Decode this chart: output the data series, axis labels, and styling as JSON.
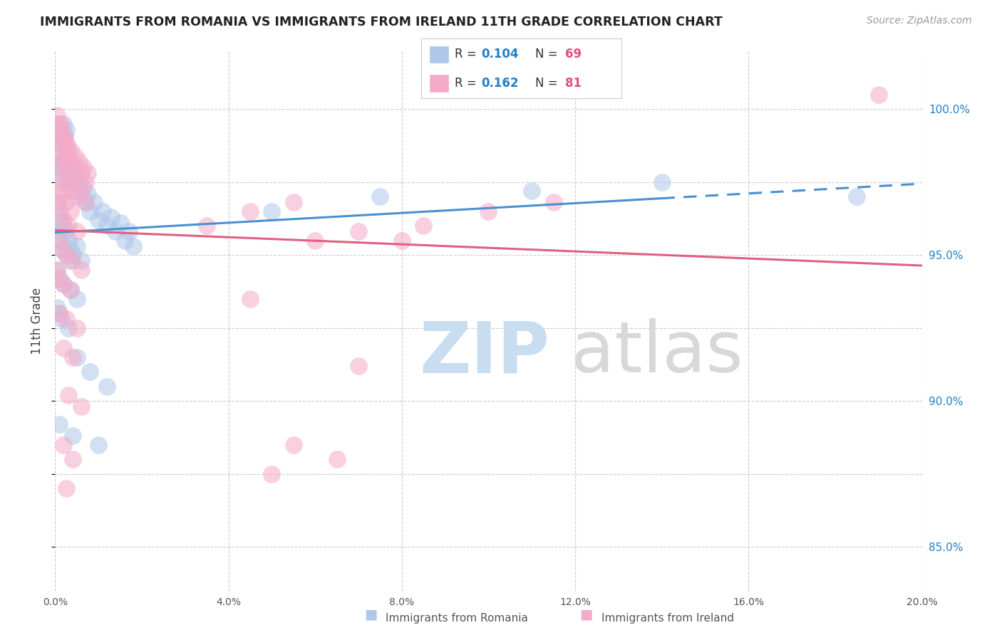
{
  "title": "IMMIGRANTS FROM ROMANIA VS IMMIGRANTS FROM IRELAND 11TH GRADE CORRELATION CHART",
  "source": "Source: ZipAtlas.com",
  "ylabel": "11th Grade",
  "y_ticks": [
    85.0,
    90.0,
    95.0,
    100.0
  ],
  "y_tick_labels": [
    "85.0%",
    "90.0%",
    "95.0%",
    "100.0%"
  ],
  "x_ticks": [
    0,
    4,
    8,
    12,
    16,
    20
  ],
  "x_tick_labels": [
    "0.0%",
    "4.0%",
    "8.0%",
    "12.0%",
    "16.0%",
    "20.0%"
  ],
  "x_range": [
    0.0,
    20.0
  ],
  "y_range": [
    83.5,
    102.0
  ],
  "romania_color": "#adc8e8",
  "ireland_color": "#f5aac8",
  "romania_line_color": "#4a90d0",
  "ireland_line_color": "#e06080",
  "legend_R_color": "#2080c8",
  "legend_N_color": "#e05080",
  "romania_R": 0.104,
  "romania_N": 69,
  "ireland_R": 0.162,
  "ireland_N": 81,
  "romania_scatter": [
    [
      0.05,
      98.1
    ],
    [
      0.08,
      98.5
    ],
    [
      0.1,
      99.0
    ],
    [
      0.12,
      98.8
    ],
    [
      0.15,
      99.2
    ],
    [
      0.18,
      99.0
    ],
    [
      0.2,
      99.5
    ],
    [
      0.22,
      99.1
    ],
    [
      0.25,
      99.3
    ],
    [
      0.28,
      98.7
    ],
    [
      0.1,
      98.0
    ],
    [
      0.15,
      97.8
    ],
    [
      0.2,
      97.5
    ],
    [
      0.25,
      98.2
    ],
    [
      0.3,
      97.9
    ],
    [
      0.35,
      98.1
    ],
    [
      0.4,
      97.6
    ],
    [
      0.45,
      97.8
    ],
    [
      0.5,
      97.2
    ],
    [
      0.55,
      97.5
    ],
    [
      0.6,
      97.0
    ],
    [
      0.65,
      97.3
    ],
    [
      0.7,
      96.8
    ],
    [
      0.75,
      97.1
    ],
    [
      0.8,
      96.5
    ],
    [
      0.9,
      96.8
    ],
    [
      1.0,
      96.2
    ],
    [
      1.1,
      96.5
    ],
    [
      1.2,
      96.0
    ],
    [
      1.3,
      96.3
    ],
    [
      1.4,
      95.8
    ],
    [
      1.5,
      96.1
    ],
    [
      1.6,
      95.5
    ],
    [
      1.7,
      95.8
    ],
    [
      1.8,
      95.3
    ],
    [
      0.05,
      96.8
    ],
    [
      0.1,
      96.5
    ],
    [
      0.15,
      96.2
    ],
    [
      0.2,
      96.0
    ],
    [
      0.25,
      95.8
    ],
    [
      0.3,
      95.5
    ],
    [
      0.35,
      95.2
    ],
    [
      0.4,
      95.0
    ],
    [
      0.5,
      95.3
    ],
    [
      0.6,
      94.8
    ],
    [
      0.08,
      95.8
    ],
    [
      0.12,
      95.5
    ],
    [
      0.18,
      95.2
    ],
    [
      0.25,
      95.0
    ],
    [
      0.35,
      94.8
    ],
    [
      0.05,
      94.5
    ],
    [
      0.1,
      94.2
    ],
    [
      0.2,
      94.0
    ],
    [
      0.35,
      93.8
    ],
    [
      0.5,
      93.5
    ],
    [
      0.05,
      93.2
    ],
    [
      0.1,
      93.0
    ],
    [
      0.15,
      92.8
    ],
    [
      0.3,
      92.5
    ],
    [
      0.5,
      91.5
    ],
    [
      0.8,
      91.0
    ],
    [
      1.2,
      90.5
    ],
    [
      0.1,
      89.2
    ],
    [
      0.4,
      88.8
    ],
    [
      1.0,
      88.5
    ],
    [
      5.0,
      96.5
    ],
    [
      7.5,
      97.0
    ],
    [
      11.0,
      97.2
    ],
    [
      14.0,
      97.5
    ],
    [
      18.5,
      97.0
    ]
  ],
  "ireland_scatter": [
    [
      0.05,
      99.8
    ],
    [
      0.08,
      99.5
    ],
    [
      0.1,
      99.3
    ],
    [
      0.12,
      99.5
    ],
    [
      0.15,
      99.0
    ],
    [
      0.18,
      99.2
    ],
    [
      0.2,
      98.8
    ],
    [
      0.22,
      99.0
    ],
    [
      0.25,
      98.5
    ],
    [
      0.28,
      98.8
    ],
    [
      0.3,
      98.3
    ],
    [
      0.35,
      98.6
    ],
    [
      0.4,
      98.1
    ],
    [
      0.45,
      98.4
    ],
    [
      0.5,
      98.0
    ],
    [
      0.55,
      98.2
    ],
    [
      0.6,
      97.8
    ],
    [
      0.65,
      98.0
    ],
    [
      0.7,
      97.5
    ],
    [
      0.75,
      97.8
    ],
    [
      0.1,
      98.5
    ],
    [
      0.15,
      98.2
    ],
    [
      0.2,
      98.0
    ],
    [
      0.25,
      97.8
    ],
    [
      0.3,
      97.5
    ],
    [
      0.35,
      97.2
    ],
    [
      0.4,
      97.5
    ],
    [
      0.5,
      97.0
    ],
    [
      0.6,
      97.2
    ],
    [
      0.7,
      96.8
    ],
    [
      0.08,
      97.5
    ],
    [
      0.12,
      97.2
    ],
    [
      0.18,
      97.0
    ],
    [
      0.25,
      96.8
    ],
    [
      0.35,
      96.5
    ],
    [
      0.05,
      96.8
    ],
    [
      0.1,
      96.5
    ],
    [
      0.2,
      96.2
    ],
    [
      0.3,
      96.0
    ],
    [
      0.5,
      95.8
    ],
    [
      0.08,
      95.5
    ],
    [
      0.15,
      95.2
    ],
    [
      0.25,
      95.0
    ],
    [
      0.4,
      94.8
    ],
    [
      0.6,
      94.5
    ],
    [
      0.05,
      94.5
    ],
    [
      0.1,
      94.2
    ],
    [
      0.2,
      94.0
    ],
    [
      0.35,
      93.8
    ],
    [
      0.1,
      93.0
    ],
    [
      0.25,
      92.8
    ],
    [
      0.5,
      92.5
    ],
    [
      0.2,
      91.8
    ],
    [
      0.4,
      91.5
    ],
    [
      0.3,
      90.2
    ],
    [
      0.6,
      89.8
    ],
    [
      0.2,
      88.5
    ],
    [
      0.4,
      88.0
    ],
    [
      0.25,
      87.0
    ],
    [
      3.5,
      96.0
    ],
    [
      4.5,
      96.5
    ],
    [
      5.5,
      96.8
    ],
    [
      6.0,
      95.5
    ],
    [
      7.0,
      95.8
    ],
    [
      8.0,
      95.5
    ],
    [
      8.5,
      96.0
    ],
    [
      10.0,
      96.5
    ],
    [
      11.5,
      96.8
    ],
    [
      4.5,
      93.5
    ],
    [
      7.0,
      91.2
    ],
    [
      5.5,
      88.5
    ],
    [
      5.0,
      87.5
    ],
    [
      6.5,
      88.0
    ],
    [
      19.0,
      100.5
    ]
  ]
}
